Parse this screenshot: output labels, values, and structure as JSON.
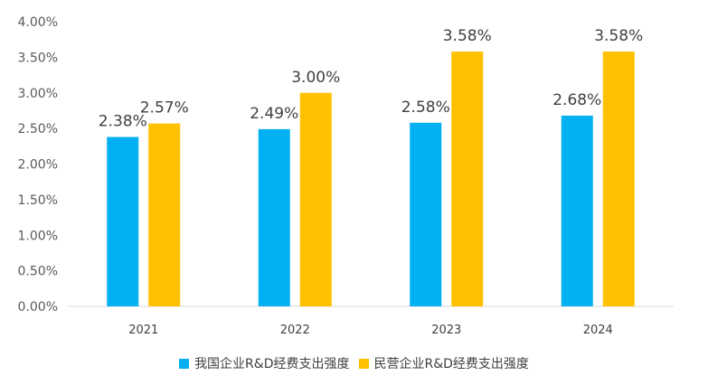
{
  "chart_data": {
    "type": "bar",
    "title": "",
    "xlabel": "",
    "ylabel": "",
    "categories": [
      "2021",
      "2022",
      "2023",
      "2024"
    ],
    "series": [
      {
        "name": "我国企业R&D经费支出强度",
        "values": [
          2.38,
          2.49,
          2.58,
          2.68
        ],
        "labels": [
          "2.38%",
          "2.49%",
          "2.58%",
          "2.68%"
        ],
        "color": "#00B0F0"
      },
      {
        "name": "民营企业R&D经费支出强度",
        "values": [
          2.57,
          3.0,
          3.58,
          3.58
        ],
        "labels": [
          "2.57%",
          "3.00%",
          "3.58%",
          "3.58%"
        ],
        "color": "#FFC000"
      }
    ],
    "ylim": [
      0,
      4
    ],
    "yticks": [
      0,
      0.5,
      1,
      1.5,
      2,
      2.5,
      3,
      3.5,
      4
    ],
    "ytick_labels": [
      "0.00%",
      "0.50%",
      "1.00%",
      "1.50%",
      "2.00%",
      "2.50%",
      "3.00%",
      "3.50%",
      "4.00%"
    ],
    "grid": false,
    "legend_position": "bottom"
  }
}
